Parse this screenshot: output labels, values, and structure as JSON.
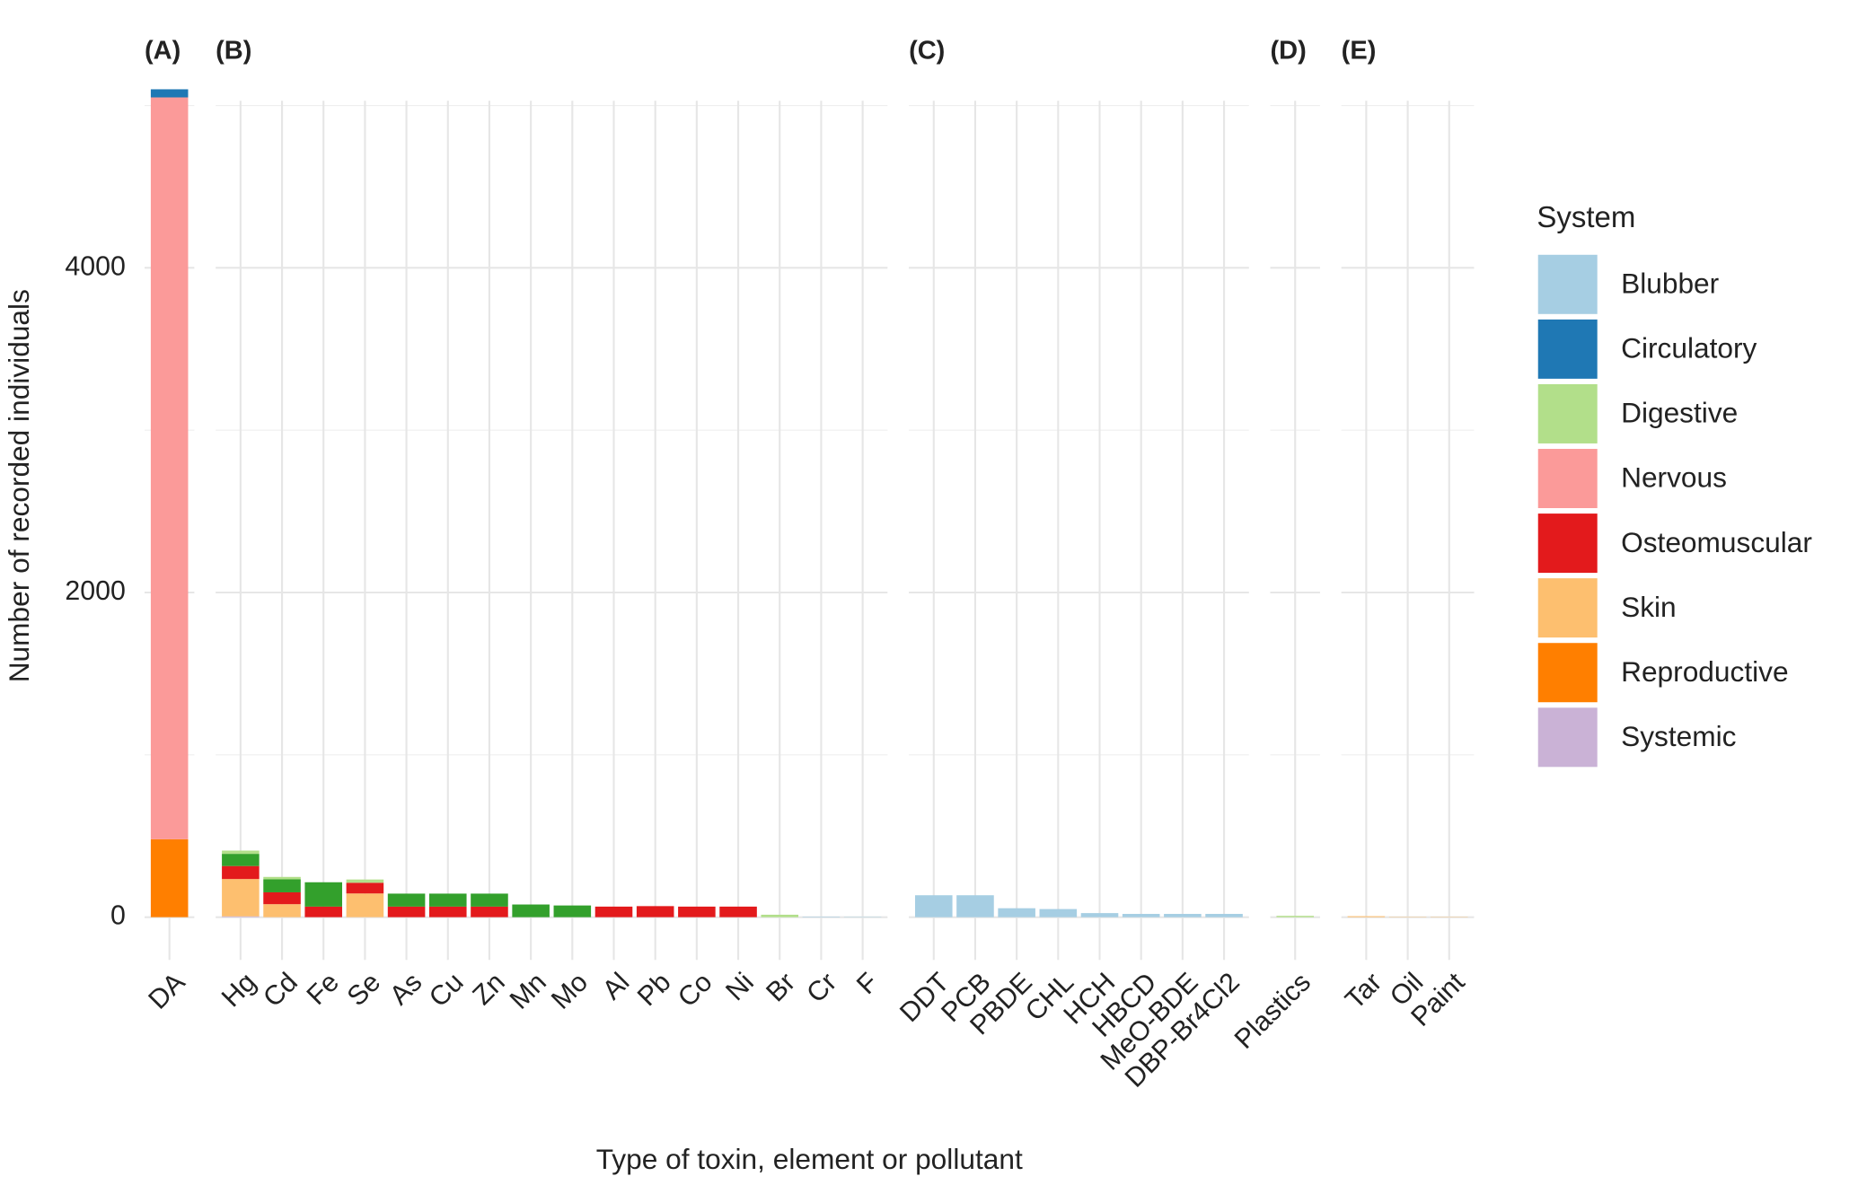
{
  "chart_data": {
    "type": "bar",
    "stacked": true,
    "ylabel": "Number of recorded individuals",
    "xlabel": "Type of toxin, element or pollutant",
    "legend_title": "System",
    "ylim": [
      -117,
      5139
    ],
    "yticks": [
      0,
      2000,
      4000
    ],
    "yminor": [
      1000,
      3000,
      5000
    ],
    "grid": true,
    "series": [
      {
        "name": "Blubber",
        "color": "#a6cee3"
      },
      {
        "name": "Circulatory",
        "color": "#1f78b4"
      },
      {
        "name": "Digestive",
        "color": "#b2df8a"
      },
      {
        "color": "#33a02c"
      },
      {
        "name": "Nervous",
        "color": "#fb9a99"
      },
      {
        "name": "Osteomuscular",
        "color": "#e31a1c"
      },
      {
        "name": "Skin",
        "color": "#fdbf6f"
      },
      {
        "name": "Reproductive",
        "color": "#ff7f00"
      },
      {
        "name": "Systemic",
        "color": "#cab2d6"
      }
    ],
    "panels": [
      {
        "title": "(A)",
        "categories": [
          "DA"
        ],
        "series": [
          {
            "values": [
              0
            ]
          },
          {
            "values": [
              50
            ]
          },
          {
            "values": [
              0
            ]
          },
          {
            "values": [
              0
            ]
          },
          {
            "values": [
              4570
            ]
          },
          {
            "values": [
              0
            ]
          },
          {
            "values": [
              0
            ]
          },
          {
            "values": [
              480
            ]
          },
          {
            "values": [
              0
            ]
          }
        ]
      },
      {
        "title": "(B)",
        "categories": [
          "Hg",
          "Cd",
          "Fe",
          "Se",
          "As",
          "Cu",
          "Zn",
          "Mn",
          "Mo",
          "Al",
          "Pb",
          "Co",
          "Ni",
          "Br",
          "Cr",
          "F"
        ],
        "series": [
          {
            "values": [
              0,
              0,
              0,
              0,
              0,
              0,
              0,
              0,
              0,
              0,
              0,
              0,
              0,
              0,
              3,
              2
            ]
          },
          {
            "values": [
              0,
              0,
              0,
              0,
              0,
              0,
              0,
              0,
              0,
              0,
              0,
              0,
              0,
              0,
              0,
              0
            ]
          },
          {
            "values": [
              20,
              15,
              0,
              20,
              0,
              0,
              0,
              0,
              0,
              0,
              0,
              0,
              0,
              15,
              0,
              0
            ]
          },
          {
            "values": [
              75,
              80,
              150,
              0,
              80,
              80,
              80,
              78,
              72,
              0,
              0,
              0,
              0,
              0,
              0,
              0
            ]
          },
          {
            "values": [
              0,
              0,
              0,
              0,
              0,
              0,
              0,
              0,
              0,
              0,
              0,
              0,
              0,
              0,
              0,
              0
            ]
          },
          {
            "values": [
              80,
              73,
              65,
              66,
              65,
              65,
              65,
              0,
              0,
              65,
              68,
              65,
              65,
              0,
              0,
              0
            ]
          },
          {
            "values": [
              230,
              80,
              0,
              146,
              0,
              0,
              0,
              0,
              0,
              0,
              0,
              0,
              0,
              0,
              0,
              0
            ]
          },
          {
            "values": [
              0,
              0,
              0,
              0,
              0,
              0,
              0,
              0,
              0,
              0,
              0,
              0,
              0,
              0,
              0,
              0
            ]
          },
          {
            "values": [
              5,
              0,
              0,
              0,
              0,
              0,
              0,
              0,
              0,
              0,
              0,
              0,
              0,
              0,
              0,
              0
            ]
          }
        ]
      },
      {
        "title": "(C)",
        "categories": [
          "DDT",
          "PCB",
          "PBDE",
          "CHL",
          "HCH",
          "HBCD",
          "MeO-BDE",
          "DBP-Br4Cl2"
        ],
        "series": [
          {
            "values": [
              135,
              135,
              55,
              50,
              25,
              20,
              20,
              20
            ]
          },
          {
            "values": [
              0,
              0,
              0,
              0,
              0,
              0,
              0,
              0
            ]
          },
          {
            "values": [
              0,
              0,
              0,
              0,
              0,
              0,
              0,
              0
            ]
          },
          {
            "values": [
              0,
              0,
              0,
              0,
              0,
              0,
              0,
              0
            ]
          },
          {
            "values": [
              0,
              0,
              0,
              0,
              0,
              0,
              0,
              0
            ]
          },
          {
            "values": [
              0,
              0,
              0,
              0,
              0,
              0,
              0,
              0
            ]
          },
          {
            "values": [
              0,
              0,
              0,
              0,
              0,
              0,
              0,
              0
            ]
          },
          {
            "values": [
              0,
              0,
              0,
              0,
              0,
              0,
              0,
              0
            ]
          },
          {
            "values": [
              0,
              0,
              0,
              0,
              0,
              0,
              0,
              0
            ]
          }
        ]
      },
      {
        "title": "(D)",
        "categories": [
          "Plastics"
        ],
        "series": [
          {
            "values": [
              0
            ]
          },
          {
            "values": [
              0
            ]
          },
          {
            "values": [
              8
            ]
          },
          {
            "values": [
              0
            ]
          },
          {
            "values": [
              0
            ]
          },
          {
            "values": [
              0
            ]
          },
          {
            "values": [
              0
            ]
          },
          {
            "values": [
              0
            ]
          },
          {
            "values": [
              0
            ]
          }
        ]
      },
      {
        "title": "(E)",
        "categories": [
          "Tar",
          "Oil",
          "Paint"
        ],
        "series": [
          {
            "values": [
              0,
              0,
              0
            ]
          },
          {
            "values": [
              0,
              0,
              0
            ]
          },
          {
            "values": [
              0,
              0,
              0
            ]
          },
          {
            "values": [
              0,
              0,
              0
            ]
          },
          {
            "values": [
              0,
              0,
              0
            ]
          },
          {
            "values": [
              0,
              0,
              0
            ]
          },
          {
            "values": [
              6,
              2,
              2
            ]
          },
          {
            "values": [
              0,
              0,
              0
            ]
          },
          {
            "values": [
              0,
              0,
              0
            ]
          }
        ]
      }
    ]
  }
}
